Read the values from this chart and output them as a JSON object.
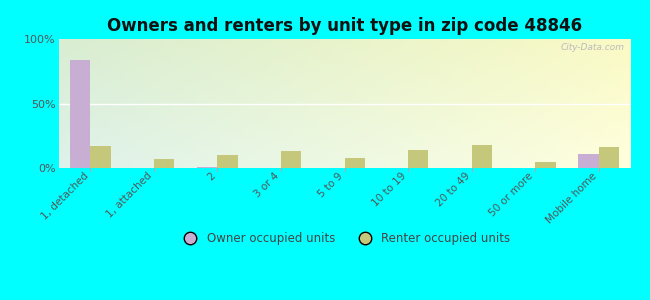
{
  "title": "Owners and renters by unit type in zip code 48846",
  "categories": [
    "1, detached",
    "1, attached",
    "2",
    "3 or 4",
    "5 to 9",
    "10 to 19",
    "20 to 49",
    "50 or more",
    "Mobile home"
  ],
  "owner_values": [
    84,
    0,
    1,
    0,
    0,
    0,
    0,
    0,
    11
  ],
  "renter_values": [
    17,
    7,
    10,
    13,
    8,
    14,
    18,
    5,
    16
  ],
  "owner_color": "#c9aed3",
  "renter_color": "#c5c87a",
  "bg_color_tl": "#d8edc8",
  "bg_color_tr": "#e8f5e0",
  "bg_color_bl": "#eef8e0",
  "bg_color_br": "#f8fef0",
  "outer_bg": "#00ffff",
  "ylim": [
    0,
    100
  ],
  "yticks": [
    0,
    50,
    100
  ],
  "ytick_labels": [
    "0%",
    "50%",
    "100%"
  ],
  "legend_owner": "Owner occupied units",
  "legend_renter": "Renter occupied units",
  "title_fontsize": 12,
  "bar_width": 0.32,
  "watermark": "City-Data.com"
}
